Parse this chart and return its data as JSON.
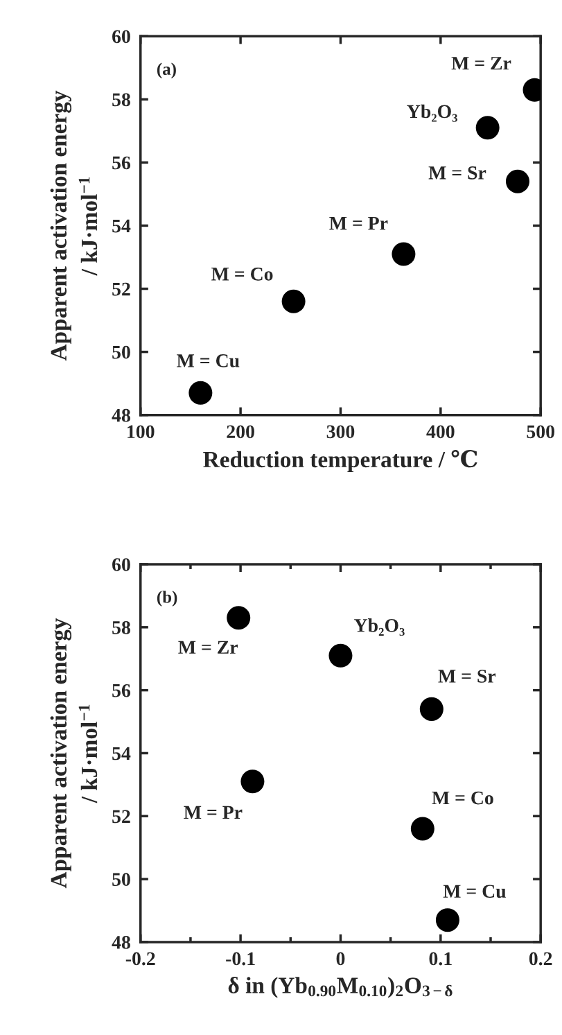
{
  "chart_data": [
    {
      "type": "scatter",
      "x": [
        160,
        253,
        363,
        447,
        477,
        494
      ],
      "xlabel": "Reduction temperature / ℃",
      "ylabel": "Apparent activation energy\n/ kJ·mol$^{−1}$",
      "series": [
        {
          "color": "#000000",
          "values": [
            48.7,
            51.6,
            53.1,
            57.1,
            55.4,
            58.3
          ]
        }
      ],
      "xlim": [
        100,
        500
      ],
      "xticks": [
        100,
        200,
        300,
        400,
        500
      ],
      "ylim": [
        48,
        60
      ],
      "yticks": [
        48,
        50,
        52,
        54,
        56,
        58,
        60
      ],
      "marker": "circle",
      "grid": false,
      "legend": false,
      "annotations": [
        "(a)",
        {
          "text": "M = Cu",
          "x": 160,
          "y": 48.7
        },
        {
          "text": "M = Co",
          "x": 253,
          "y": 51.6
        },
        {
          "text": "M = Pr",
          "x": 363,
          "y": 53.1
        },
        {
          "text": "Yb₂O₃",
          "x": 447,
          "y": 57.1
        },
        {
          "text": "M = Sr",
          "x": 477,
          "y": 55.4
        },
        {
          "text": "M = Zr",
          "x": 494,
          "y": 58.3
        }
      ]
    },
    {
      "type": "scatter",
      "x": [
        0.107,
        0.082,
        -0.088,
        0,
        0.091,
        -0.102
      ],
      "xlabel": "δ in (Yb$_{0.90}$M$_{0.10}$)$_{2}$O$_{3−δ}$",
      "ylabel": "Apparent activation energy\n/ kJ·mol$^{−1}$",
      "series": [
        {
          "color": "#000000",
          "values": [
            48.7,
            51.6,
            53.1,
            57.1,
            55.4,
            58.3
          ]
        }
      ],
      "xlim": [
        -0.2,
        0.2
      ],
      "xticks": [
        {
          "value": -0.2,
          "label": "-0.2"
        },
        {
          "value": -0.15,
          "label": null
        },
        {
          "value": -0.1,
          "label": "-0.1"
        },
        {
          "value": -0.05,
          "label": null
        },
        0,
        {
          "value": 0.05,
          "label": null
        },
        0.1,
        {
          "value": 0.15,
          "label": null
        },
        0.2
      ],
      "ylim": [
        48,
        60
      ],
      "yticks": [
        48,
        50,
        52,
        54,
        56,
        58,
        60
      ],
      "marker": "circle",
      "grid": false,
      "legend": false,
      "annotations": [
        "(b)",
        {
          "text": "M = Cu",
          "x": 0.107,
          "y": 48.7
        },
        {
          "text": "M = Co",
          "x": 0.082,
          "y": 51.6
        },
        {
          "text": "M = Pr",
          "x": -0.088,
          "y": 53.1
        },
        {
          "text": "Yb₂O₃",
          "x": 0,
          "y": 57.1
        },
        {
          "text": "M = Sr",
          "x": 0.091,
          "y": 55.4
        },
        {
          "text": "M = Zr",
          "x": -0.102,
          "y": 58.3
        }
      ]
    }
  ]
}
